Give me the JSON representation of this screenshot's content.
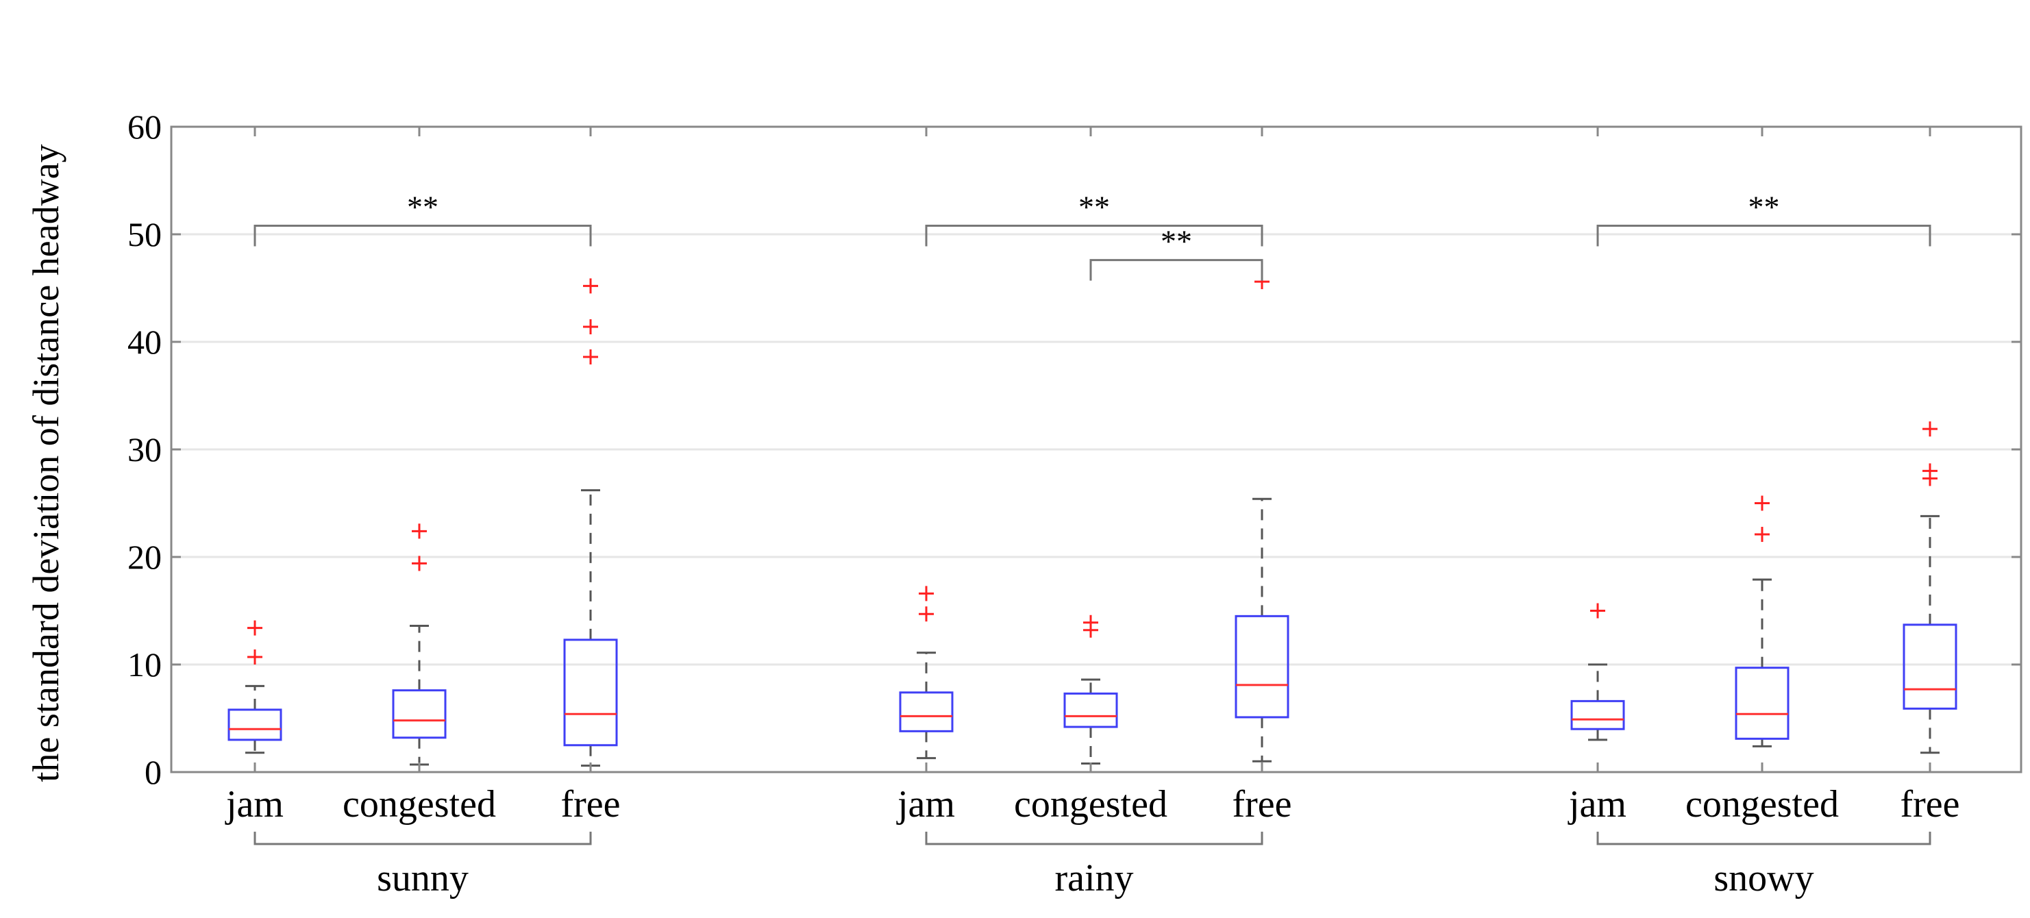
{
  "chart_data": {
    "type": "boxplot",
    "title": "",
    "ylabel": "the standard deviation of distance headway",
    "xlabel": "",
    "ylim": [
      0,
      60
    ],
    "yticks": [
      0,
      10,
      20,
      30,
      40,
      50,
      60
    ],
    "grid": "horizontal",
    "colors": {
      "box": "#3f3ff5",
      "median": "#ff3030",
      "whisker": "#555555",
      "outlier": "#ff2020",
      "bracket": "#777777",
      "grid": "#e6e6e6",
      "axis": "#888888"
    },
    "groups": [
      {
        "name": "sunny",
        "boxes": [
          {
            "category": "jam",
            "whisker_low": 1.8,
            "q1": 3.0,
            "median": 4.0,
            "q3": 5.8,
            "whisker_high": 8.0,
            "outliers": [
              10.7,
              13.4
            ]
          },
          {
            "category": "congested",
            "whisker_low": 0.7,
            "q1": 3.2,
            "median": 4.8,
            "q3": 7.6,
            "whisker_high": 13.6,
            "outliers": [
              19.4,
              22.4
            ]
          },
          {
            "category": "free",
            "whisker_low": 0.6,
            "q1": 2.5,
            "median": 5.4,
            "q3": 12.3,
            "whisker_high": 26.2,
            "outliers": [
              38.6,
              41.4,
              45.2
            ]
          }
        ],
        "significance": [
          {
            "from": 0,
            "to": 2,
            "level": 50.8,
            "label": "**"
          }
        ]
      },
      {
        "name": "rainy",
        "boxes": [
          {
            "category": "jam",
            "whisker_low": 1.3,
            "q1": 3.8,
            "median": 5.2,
            "q3": 7.4,
            "whisker_high": 11.1,
            "outliers": [
              14.7,
              16.6
            ]
          },
          {
            "category": "congested",
            "whisker_low": 0.8,
            "q1": 4.2,
            "median": 5.2,
            "q3": 7.3,
            "whisker_high": 8.6,
            "outliers": [
              13.2,
              13.9
            ]
          },
          {
            "category": "free",
            "whisker_low": 1.0,
            "q1": 5.1,
            "median": 8.1,
            "q3": 14.5,
            "whisker_high": 25.4,
            "outliers": [
              45.6
            ]
          }
        ],
        "significance": [
          {
            "from": 0,
            "to": 2,
            "level": 50.8,
            "label": "**"
          },
          {
            "from": 1,
            "to": 2,
            "level": 47.6,
            "label": "**"
          }
        ]
      },
      {
        "name": "snowy",
        "boxes": [
          {
            "category": "jam",
            "whisker_low": 3.0,
            "q1": 4.0,
            "median": 4.9,
            "q3": 6.6,
            "whisker_high": 10.0,
            "outliers": [
              15.0
            ]
          },
          {
            "category": "congested",
            "whisker_low": 2.4,
            "q1": 3.1,
            "median": 5.4,
            "q3": 9.7,
            "whisker_high": 17.9,
            "outliers": [
              22.1,
              25.0
            ]
          },
          {
            "category": "free",
            "whisker_low": 1.8,
            "q1": 5.9,
            "median": 7.7,
            "q3": 13.7,
            "whisker_high": 23.8,
            "outliers": [
              27.3,
              28.0,
              31.9
            ]
          }
        ],
        "significance": [
          {
            "from": 0,
            "to": 2,
            "level": 50.8,
            "label": "**"
          }
        ]
      }
    ]
  }
}
